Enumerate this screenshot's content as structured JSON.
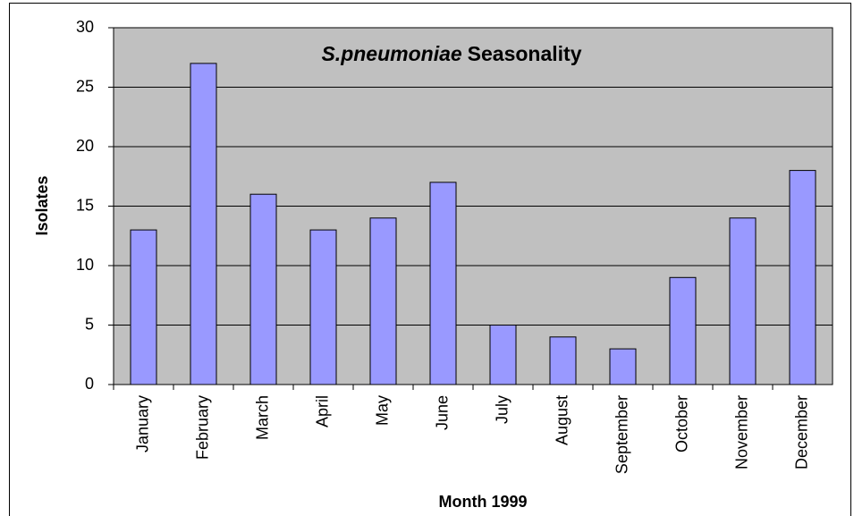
{
  "chart_data": {
    "type": "bar",
    "title": {
      "species": "S.pneumoniae",
      "text": "Seasonality"
    },
    "x_label": "Month 1999",
    "y_label": "Isolates",
    "categories": [
      "January",
      "February",
      "March",
      "April",
      "May",
      "June",
      "July",
      "August",
      "September",
      "October",
      "November",
      "December"
    ],
    "values": [
      13,
      27,
      16,
      13,
      14,
      17,
      5,
      4,
      3,
      9,
      14,
      18
    ],
    "color": "#9999ff",
    "ylim": [
      0,
      30
    ],
    "yticks": [
      0,
      5,
      10,
      15,
      20,
      25,
      30
    ],
    "grid": true
  }
}
